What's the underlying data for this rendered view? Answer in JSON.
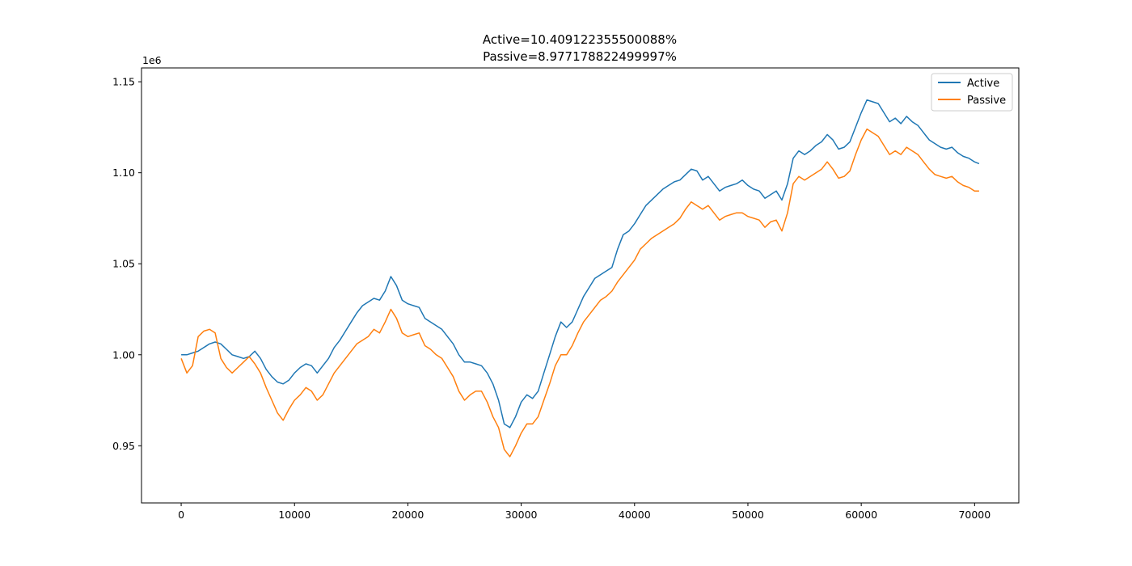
{
  "chart_data": {
    "type": "line",
    "title_lines": [
      "Active=10.409122355500088%",
      "Passive=8.977178822499997%"
    ],
    "xlabel": "",
    "ylabel": "",
    "y_offset_label": "1e6",
    "xlim": [
      -3500,
      73900
    ],
    "ylim": [
      0.9186,
      1.1576
    ],
    "xticks": [
      0,
      10000,
      20000,
      30000,
      40000,
      50000,
      60000,
      70000
    ],
    "xtick_labels": [
      "0",
      "10000",
      "20000",
      "30000",
      "40000",
      "50000",
      "60000",
      "70000"
    ],
    "yticks": [
      0.95,
      1.0,
      1.05,
      1.1,
      1.15
    ],
    "ytick_labels": [
      "0.95",
      "1.00",
      "1.05",
      "1.10",
      "1.15"
    ],
    "grid": false,
    "legend_position": "upper right",
    "series": [
      {
        "name": "Active",
        "color": "#1f77b4",
        "x": [
          0,
          500,
          1000,
          1500,
          2000,
          2500,
          3000,
          3500,
          4000,
          4500,
          5000,
          5500,
          6000,
          6500,
          7000,
          7500,
          8000,
          8500,
          9000,
          9500,
          10000,
          10500,
          11000,
          11500,
          12000,
          12500,
          13000,
          13500,
          14000,
          14500,
          15000,
          15500,
          16000,
          16500,
          17000,
          17500,
          18000,
          18500,
          19000,
          19500,
          20000,
          20500,
          21000,
          21500,
          22000,
          22500,
          23000,
          23500,
          24000,
          24500,
          25000,
          25500,
          26000,
          26500,
          27000,
          27500,
          28000,
          28500,
          29000,
          29500,
          30000,
          30500,
          31000,
          31500,
          32000,
          32500,
          33000,
          33500,
          34000,
          34500,
          35000,
          35500,
          36000,
          36500,
          37000,
          37500,
          38000,
          38500,
          39000,
          39500,
          40000,
          40500,
          41000,
          41500,
          42000,
          42500,
          43000,
          43500,
          44000,
          44500,
          45000,
          45500,
          46000,
          46500,
          47000,
          47500,
          48000,
          48500,
          49000,
          49500,
          50000,
          50500,
          51000,
          51500,
          52000,
          52500,
          53000,
          53500,
          54000,
          54500,
          55000,
          55500,
          56000,
          56500,
          57000,
          57500,
          58000,
          58500,
          59000,
          59500,
          60000,
          60500,
          61000,
          61500,
          62000,
          62500,
          63000,
          63500,
          64000,
          64500,
          65000,
          65500,
          66000,
          66500,
          67000,
          67500,
          68000,
          68500,
          69000,
          69500,
          70000,
          70400
        ],
        "y": [
          1.0,
          1.0,
          1.001,
          1.002,
          1.004,
          1.006,
          1.007,
          1.006,
          1.003,
          1.0,
          0.999,
          0.998,
          0.999,
          1.002,
          0.998,
          0.992,
          0.988,
          0.985,
          0.984,
          0.986,
          0.99,
          0.993,
          0.995,
          0.994,
          0.99,
          0.994,
          0.998,
          1.004,
          1.008,
          1.013,
          1.018,
          1.023,
          1.027,
          1.029,
          1.031,
          1.03,
          1.035,
          1.043,
          1.038,
          1.03,
          1.028,
          1.027,
          1.026,
          1.02,
          1.018,
          1.016,
          1.014,
          1.01,
          1.006,
          1.0,
          0.996,
          0.996,
          0.995,
          0.994,
          0.99,
          0.984,
          0.975,
          0.962,
          0.96,
          0.966,
          0.974,
          0.978,
          0.976,
          0.98,
          0.99,
          1.0,
          1.01,
          1.018,
          1.015,
          1.018,
          1.025,
          1.032,
          1.037,
          1.042,
          1.044,
          1.046,
          1.048,
          1.058,
          1.066,
          1.068,
          1.072,
          1.077,
          1.082,
          1.085,
          1.088,
          1.091,
          1.093,
          1.095,
          1.096,
          1.099,
          1.102,
          1.101,
          1.096,
          1.098,
          1.094,
          1.09,
          1.092,
          1.093,
          1.094,
          1.096,
          1.093,
          1.091,
          1.09,
          1.086,
          1.088,
          1.09,
          1.085,
          1.094,
          1.108,
          1.112,
          1.11,
          1.112,
          1.115,
          1.117,
          1.121,
          1.118,
          1.113,
          1.114,
          1.117,
          1.125,
          1.133,
          1.14,
          1.139,
          1.138,
          1.133,
          1.128,
          1.13,
          1.127,
          1.131,
          1.128,
          1.126,
          1.122,
          1.118,
          1.116,
          1.114,
          1.113,
          1.114,
          1.111,
          1.109,
          1.108,
          1.106,
          1.105
        ]
      },
      {
        "name": "Passive",
        "color": "#ff7f0e",
        "x": [
          0,
          500,
          1000,
          1500,
          2000,
          2500,
          3000,
          3500,
          4000,
          4500,
          5000,
          5500,
          6000,
          6500,
          7000,
          7500,
          8000,
          8500,
          9000,
          9500,
          10000,
          10500,
          11000,
          11500,
          12000,
          12500,
          13000,
          13500,
          14000,
          14500,
          15000,
          15500,
          16000,
          16500,
          17000,
          17500,
          18000,
          18500,
          19000,
          19500,
          20000,
          20500,
          21000,
          21500,
          22000,
          22500,
          23000,
          23500,
          24000,
          24500,
          25000,
          25500,
          26000,
          26500,
          27000,
          27500,
          28000,
          28500,
          29000,
          29500,
          30000,
          30500,
          31000,
          31500,
          32000,
          32500,
          33000,
          33500,
          34000,
          34500,
          35000,
          35500,
          36000,
          36500,
          37000,
          37500,
          38000,
          38500,
          39000,
          39500,
          40000,
          40500,
          41000,
          41500,
          42000,
          42500,
          43000,
          43500,
          44000,
          44500,
          45000,
          45500,
          46000,
          46500,
          47000,
          47500,
          48000,
          48500,
          49000,
          49500,
          50000,
          50500,
          51000,
          51500,
          52000,
          52500,
          53000,
          53500,
          54000,
          54500,
          55000,
          55500,
          56000,
          56500,
          57000,
          57500,
          58000,
          58500,
          59000,
          59500,
          60000,
          60500,
          61000,
          61500,
          62000,
          62500,
          63000,
          63500,
          64000,
          64500,
          65000,
          65500,
          66000,
          66500,
          67000,
          67500,
          68000,
          68500,
          69000,
          69500,
          70000,
          70400
        ],
        "y": [
          0.998,
          0.99,
          0.994,
          1.01,
          1.013,
          1.014,
          1.012,
          0.998,
          0.993,
          0.99,
          0.993,
          0.996,
          0.999,
          0.995,
          0.99,
          0.982,
          0.975,
          0.968,
          0.964,
          0.97,
          0.975,
          0.978,
          0.982,
          0.98,
          0.975,
          0.978,
          0.984,
          0.99,
          0.994,
          0.998,
          1.002,
          1.006,
          1.008,
          1.01,
          1.014,
          1.012,
          1.018,
          1.025,
          1.02,
          1.012,
          1.01,
          1.011,
          1.012,
          1.005,
          1.003,
          1.0,
          0.998,
          0.993,
          0.988,
          0.98,
          0.975,
          0.978,
          0.98,
          0.98,
          0.974,
          0.966,
          0.96,
          0.948,
          0.944,
          0.95,
          0.957,
          0.962,
          0.962,
          0.966,
          0.975,
          0.984,
          0.994,
          1.0,
          1.0,
          1.005,
          1.012,
          1.018,
          1.022,
          1.026,
          1.03,
          1.032,
          1.035,
          1.04,
          1.044,
          1.048,
          1.052,
          1.058,
          1.061,
          1.064,
          1.066,
          1.068,
          1.07,
          1.072,
          1.075,
          1.08,
          1.084,
          1.082,
          1.08,
          1.082,
          1.078,
          1.074,
          1.076,
          1.077,
          1.078,
          1.078,
          1.076,
          1.075,
          1.074,
          1.07,
          1.073,
          1.074,
          1.068,
          1.078,
          1.094,
          1.098,
          1.096,
          1.098,
          1.1,
          1.102,
          1.106,
          1.102,
          1.097,
          1.098,
          1.101,
          1.11,
          1.118,
          1.124,
          1.122,
          1.12,
          1.115,
          1.11,
          1.112,
          1.11,
          1.114,
          1.112,
          1.11,
          1.106,
          1.102,
          1.099,
          1.098,
          1.097,
          1.098,
          1.095,
          1.093,
          1.092,
          1.09,
          1.09
        ]
      }
    ]
  }
}
